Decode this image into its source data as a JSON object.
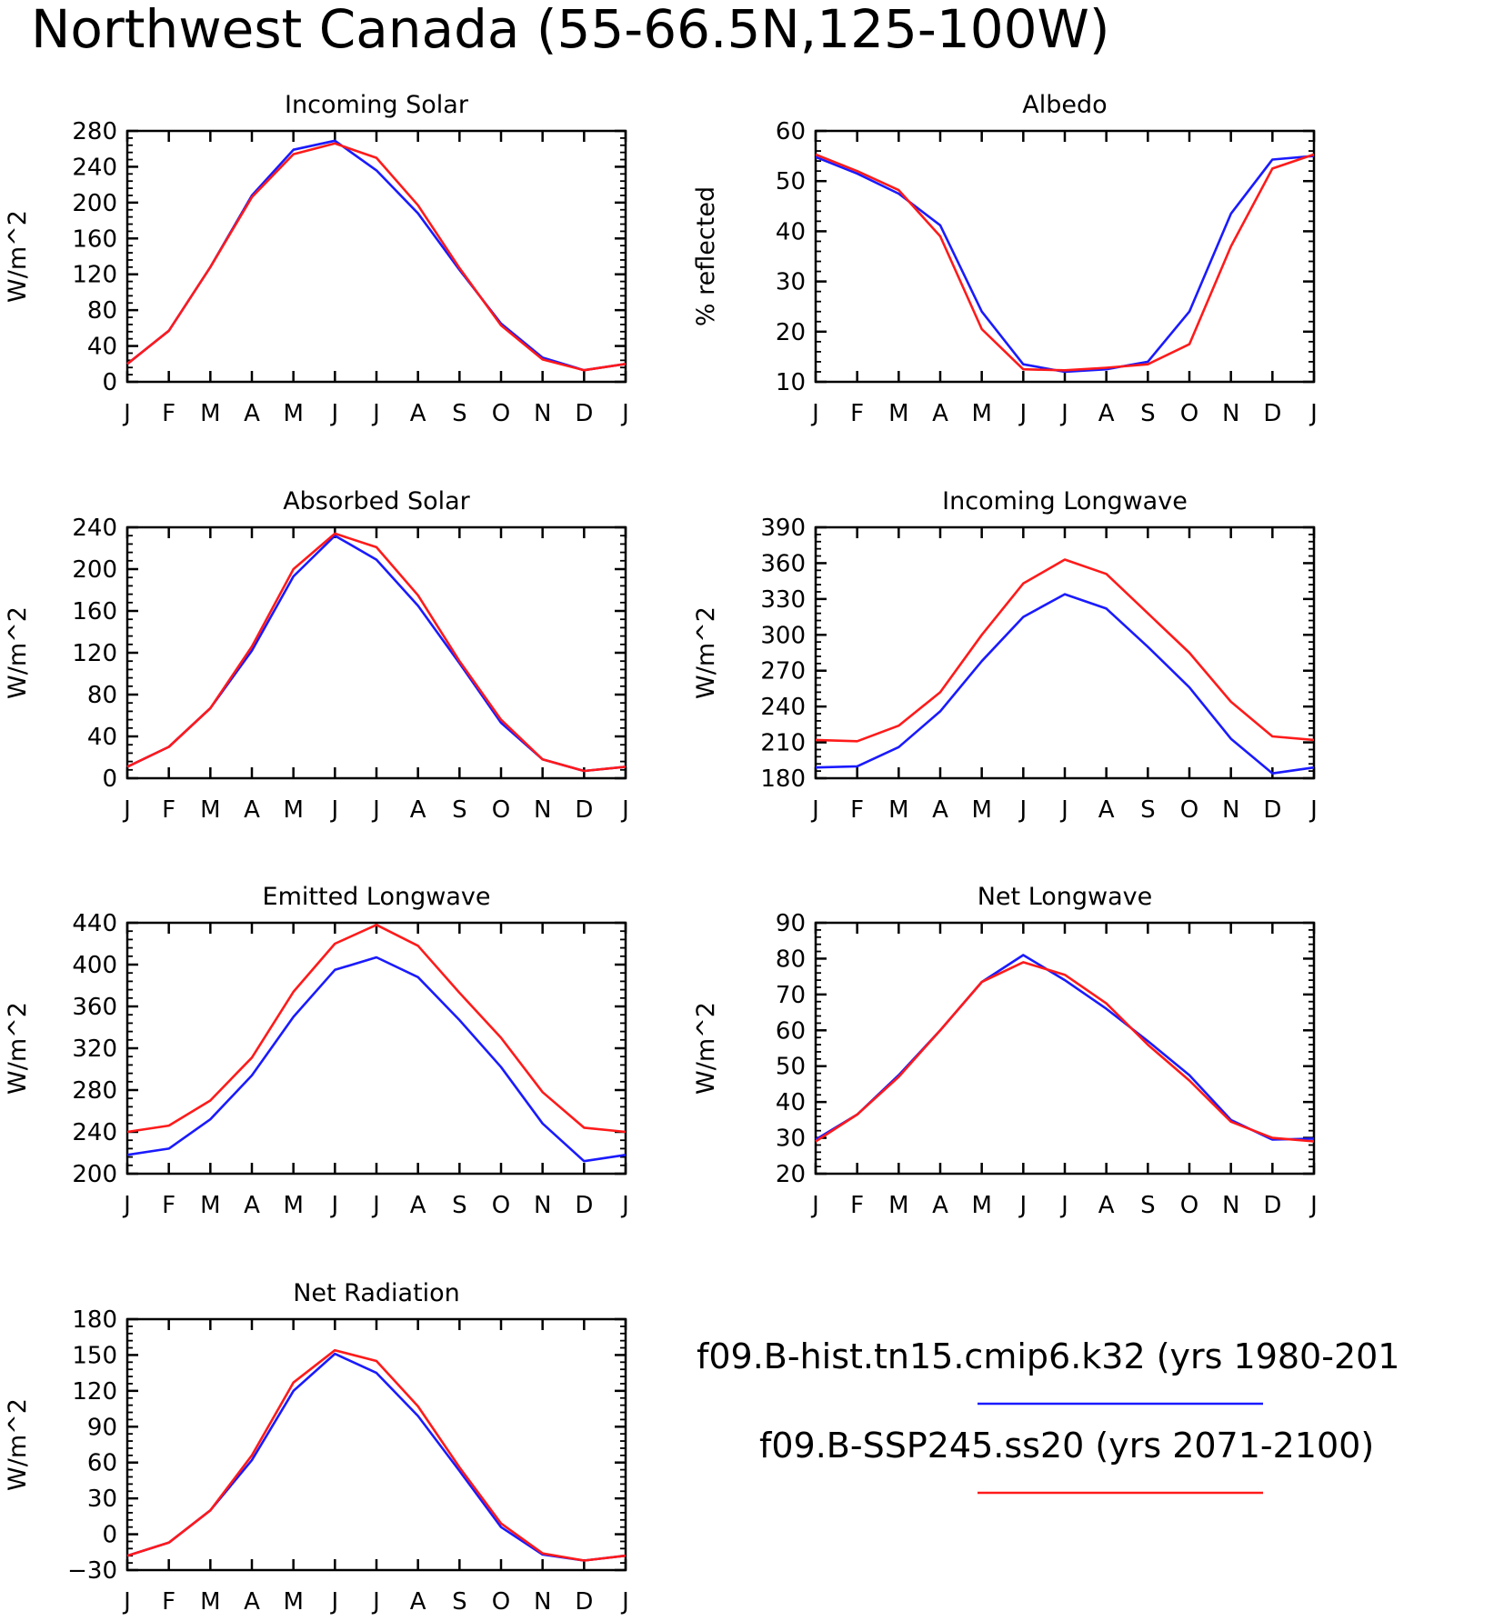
{
  "figure_title": "Northwest Canada (55-66.5N,125-100W)",
  "months": [
    "J",
    "F",
    "M",
    "A",
    "M",
    "J",
    "J",
    "A",
    "S",
    "O",
    "N",
    "D",
    "J"
  ],
  "legend": [
    {
      "label": "f09.B-hist.tn15.cmip6.k32 (yrs 1980-201",
      "color": "#1a1aff"
    },
    {
      "label": "f09.B-SSP245.ss20 (yrs 2071-2100)",
      "color": "#ff1a1a"
    }
  ],
  "chart_data": [
    {
      "type": "line",
      "title": "Incoming Solar",
      "ylabel": "W/m^2",
      "ylim": [
        0,
        280
      ],
      "yticks": [
        0,
        40,
        80,
        120,
        160,
        200,
        240,
        280
      ],
      "x": [
        "J",
        "F",
        "M",
        "A",
        "M",
        "J",
        "J",
        "A",
        "S",
        "O",
        "N",
        "D",
        "J"
      ],
      "series": [
        {
          "color": "#1a1aff",
          "values": [
            20,
            57,
            128,
            208,
            259,
            269,
            236,
            188,
            125,
            65,
            27,
            13,
            20
          ]
        },
        {
          "color": "#ff1a1a",
          "values": [
            20,
            57,
            128,
            206,
            254,
            266,
            250,
            197,
            127,
            63,
            25,
            13,
            20
          ]
        }
      ]
    },
    {
      "type": "line",
      "title": "Albedo",
      "ylabel": "% reflected",
      "ylim": [
        10,
        60
      ],
      "yticks": [
        10,
        20,
        30,
        40,
        50,
        60
      ],
      "x": [
        "J",
        "F",
        "M",
        "A",
        "M",
        "J",
        "J",
        "A",
        "S",
        "O",
        "N",
        "D",
        "J"
      ],
      "series": [
        {
          "color": "#1a1aff",
          "values": [
            54.8,
            51.5,
            47.5,
            41.2,
            24.0,
            13.5,
            12.0,
            12.5,
            14.0,
            24.0,
            43.5,
            54.3,
            55.0
          ]
        },
        {
          "color": "#ff1a1a",
          "values": [
            55.3,
            52.0,
            48.2,
            39.0,
            20.5,
            12.5,
            12.3,
            12.8,
            13.5,
            17.5,
            37.0,
            52.5,
            55.3
          ]
        }
      ]
    },
    {
      "type": "line",
      "title": "Absorbed Solar",
      "ylabel": "W/m^2",
      "ylim": [
        0,
        240
      ],
      "yticks": [
        0,
        40,
        80,
        120,
        160,
        200,
        240
      ],
      "x": [
        "J",
        "F",
        "M",
        "A",
        "M",
        "J",
        "J",
        "A",
        "S",
        "O",
        "N",
        "D",
        "J"
      ],
      "series": [
        {
          "color": "#1a1aff",
          "values": [
            11,
            30,
            67,
            122,
            193,
            232,
            209,
            165,
            110,
            53,
            18,
            7,
            11
          ]
        },
        {
          "color": "#ff1a1a",
          "values": [
            11,
            30,
            67,
            126,
            200,
            234,
            221,
            175,
            112,
            56,
            18,
            7,
            11
          ]
        }
      ]
    },
    {
      "type": "line",
      "title": "Incoming Longwave",
      "ylabel": "W/m^2",
      "ylim": [
        180,
        390
      ],
      "yticks": [
        180,
        210,
        240,
        270,
        300,
        330,
        360,
        390
      ],
      "x": [
        "J",
        "F",
        "M",
        "A",
        "M",
        "J",
        "J",
        "A",
        "S",
        "O",
        "N",
        "D",
        "J"
      ],
      "series": [
        {
          "color": "#1a1aff",
          "values": [
            189,
            190,
            206,
            236,
            278,
            315,
            334,
            322,
            290,
            256,
            213,
            184,
            189
          ]
        },
        {
          "color": "#ff1a1a",
          "values": [
            212,
            211,
            224,
            252,
            300,
            343,
            363,
            351,
            318,
            285,
            244,
            215,
            212
          ]
        }
      ]
    },
    {
      "type": "line",
      "title": "Emitted Longwave",
      "ylabel": "W/m^2",
      "ylim": [
        200,
        440
      ],
      "yticks": [
        200,
        240,
        280,
        320,
        360,
        400,
        440
      ],
      "x": [
        "J",
        "F",
        "M",
        "A",
        "M",
        "J",
        "J",
        "A",
        "S",
        "O",
        "N",
        "D",
        "J"
      ],
      "series": [
        {
          "color": "#1a1aff",
          "values": [
            218,
            224,
            252,
            294,
            350,
            395,
            407,
            388,
            347,
            302,
            248,
            212,
            218
          ]
        },
        {
          "color": "#ff1a1a",
          "values": [
            240,
            246,
            270,
            311,
            374,
            420,
            438,
            418,
            373,
            330,
            278,
            244,
            240
          ]
        }
      ]
    },
    {
      "type": "line",
      "title": "Net Longwave",
      "ylabel": "W/m^2",
      "ylim": [
        20,
        90
      ],
      "yticks": [
        20,
        30,
        40,
        50,
        60,
        70,
        80,
        90
      ],
      "x": [
        "J",
        "F",
        "M",
        "A",
        "M",
        "J",
        "J",
        "A",
        "S",
        "O",
        "N",
        "D",
        "J"
      ],
      "series": [
        {
          "color": "#1a1aff",
          "values": [
            29.5,
            36.5,
            47.5,
            60.0,
            73.5,
            81.0,
            74.0,
            66.0,
            57.0,
            47.5,
            35.0,
            29.5,
            29.8
          ]
        },
        {
          "color": "#ff1a1a",
          "values": [
            29.0,
            36.5,
            47.0,
            60.0,
            73.5,
            79.0,
            75.5,
            67.5,
            56.0,
            46.0,
            34.5,
            30.0,
            29.0
          ]
        }
      ]
    },
    {
      "type": "line",
      "title": "Net Radiation",
      "ylabel": "W/m^2",
      "ylim": [
        -30,
        180
      ],
      "yticks": [
        -30,
        0,
        30,
        60,
        90,
        120,
        150,
        180
      ],
      "x": [
        "J",
        "F",
        "M",
        "A",
        "M",
        "J",
        "J",
        "A",
        "S",
        "O",
        "N",
        "D",
        "J"
      ],
      "series": [
        {
          "color": "#1a1aff",
          "values": [
            -18,
            -7,
            20,
            62,
            120,
            151,
            135,
            99,
            53,
            6,
            -17,
            -22,
            -18
          ]
        },
        {
          "color": "#ff1a1a",
          "values": [
            -18,
            -7,
            20,
            66,
            127,
            154,
            145,
            107,
            56,
            9,
            -16,
            -22,
            -18
          ]
        }
      ]
    }
  ]
}
